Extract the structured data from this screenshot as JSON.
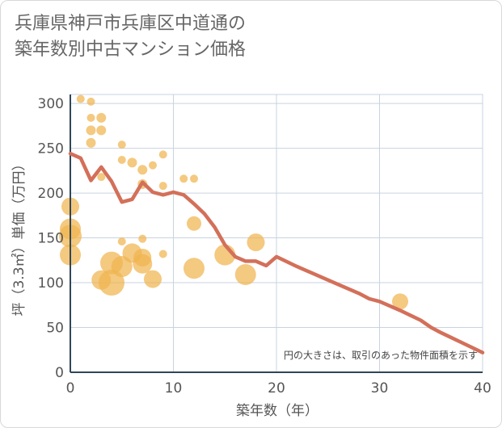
{
  "chart_data": {
    "type": "scatter",
    "title_lines": [
      "兵庫県神戸市兵庫区中道通の",
      "築年数別中古マンション価格"
    ],
    "xlabel": "築年数（年）",
    "ylabel": "坪（3.3㎡）単価（万円）",
    "xlim": [
      0,
      40
    ],
    "ylim": [
      0,
      310
    ],
    "x_ticks": [
      "0",
      "10",
      "20",
      "30",
      "40"
    ],
    "y_ticks": [
      "0",
      "50",
      "100",
      "150",
      "200",
      "250",
      "300"
    ],
    "grid": true,
    "note": "円の大きさは、取引のあった物件面積を示す",
    "colors": {
      "bubble": "#f0b44f",
      "line": "#d3705a",
      "grid": "#c9d3e0",
      "axis": "#2f4658"
    },
    "bubbles": [
      {
        "x": 1,
        "y": 305,
        "r": 5
      },
      {
        "x": 2,
        "y": 302,
        "r": 5
      },
      {
        "x": 2,
        "y": 284,
        "r": 5
      },
      {
        "x": 3,
        "y": 284,
        "r": 6
      },
      {
        "x": 2,
        "y": 270,
        "r": 6
      },
      {
        "x": 3,
        "y": 270,
        "r": 6
      },
      {
        "x": 2,
        "y": 256,
        "r": 6
      },
      {
        "x": 5,
        "y": 254,
        "r": 5
      },
      {
        "x": 9,
        "y": 243,
        "r": 5
      },
      {
        "x": 5,
        "y": 237,
        "r": 5
      },
      {
        "x": 6,
        "y": 234,
        "r": 6
      },
      {
        "x": 8,
        "y": 231,
        "r": 5
      },
      {
        "x": 7,
        "y": 226,
        "r": 6
      },
      {
        "x": 3,
        "y": 218,
        "r": 5
      },
      {
        "x": 11,
        "y": 216,
        "r": 5
      },
      {
        "x": 12,
        "y": 216,
        "r": 5
      },
      {
        "x": 7,
        "y": 210,
        "r": 6
      },
      {
        "x": 9,
        "y": 208,
        "r": 5
      },
      {
        "x": 0,
        "y": 185,
        "r": 11
      },
      {
        "x": 12,
        "y": 166,
        "r": 9
      },
      {
        "x": 0,
        "y": 160,
        "r": 13
      },
      {
        "x": 0,
        "y": 152,
        "r": 14
      },
      {
        "x": 7,
        "y": 149,
        "r": 5
      },
      {
        "x": 5,
        "y": 146,
        "r": 5
      },
      {
        "x": 18,
        "y": 145,
        "r": 11
      },
      {
        "x": 6,
        "y": 133,
        "r": 12
      },
      {
        "x": 9,
        "y": 132,
        "r": 5
      },
      {
        "x": 0,
        "y": 131,
        "r": 13
      },
      {
        "x": 15,
        "y": 131,
        "r": 13
      },
      {
        "x": 7,
        "y": 128,
        "r": 11
      },
      {
        "x": 4,
        "y": 122,
        "r": 14
      },
      {
        "x": 5,
        "y": 118,
        "r": 13
      },
      {
        "x": 7,
        "y": 121,
        "r": 12
      },
      {
        "x": 12,
        "y": 116,
        "r": 13
      },
      {
        "x": 17,
        "y": 109,
        "r": 13
      },
      {
        "x": 8,
        "y": 104,
        "r": 11
      },
      {
        "x": 3,
        "y": 103,
        "r": 12
      },
      {
        "x": 4,
        "y": 100,
        "r": 16
      },
      {
        "x": 32,
        "y": 79,
        "r": 10
      }
    ],
    "trend_line": {
      "x": [
        0,
        1,
        2,
        3,
        4,
        5,
        6,
        7,
        8,
        9,
        10,
        11,
        12,
        13,
        14,
        15,
        16,
        17,
        18,
        19,
        20,
        22,
        24,
        26,
        28,
        29,
        30,
        32,
        34,
        35,
        36,
        38,
        40
      ],
      "y": [
        244,
        239,
        214,
        229,
        213,
        190,
        193,
        212,
        201,
        198,
        201,
        198,
        188,
        177,
        162,
        142,
        129,
        124,
        124,
        119,
        129,
        118,
        108,
        98,
        88,
        82,
        79,
        69,
        58,
        50,
        44,
        33,
        22
      ]
    }
  }
}
